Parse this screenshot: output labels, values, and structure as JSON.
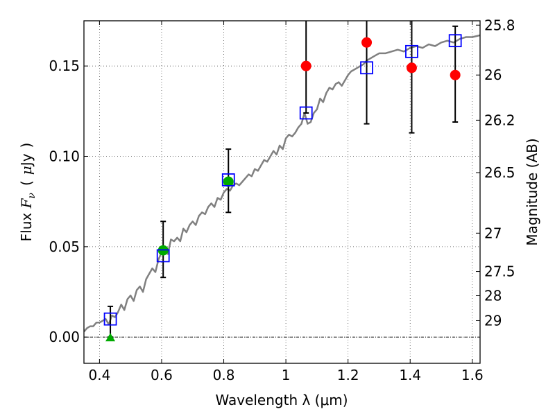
{
  "chart_data": {
    "type": "scatter",
    "xlabel": "Wavelength  λ (μm)",
    "ylabel_left": "Flux  F_ν  ( μJy )",
    "ylabel_left_parts": {
      "prefix": "Flux  ",
      "symbol": "F",
      "subscript": "ν",
      "paren_open": "(",
      "unit_mu": "μ",
      "unit_rest": "Jy",
      "paren_close": ")"
    },
    "ylabel_right": "Magnitude (AB)",
    "xlim": [
      0.35,
      1.625
    ],
    "ylim": [
      -0.0145,
      0.175
    ],
    "x_ticks": [
      0.4,
      0.6,
      0.8,
      1.0,
      1.2,
      1.4,
      1.6
    ],
    "x_tick_labels": [
      "0.4",
      "0.6",
      "0.8",
      "1",
      "1.2",
      "1.4",
      "1.6"
    ],
    "y_ticks": [
      0.0,
      0.05,
      0.1,
      0.15
    ],
    "y_tick_labels": [
      "0.00",
      "0.05",
      "0.10",
      "0.15"
    ],
    "right_ticks": [
      {
        "label": "25.8",
        "flux": 0.1726
      },
      {
        "label": "26",
        "flux": 0.145
      },
      {
        "label": "26.2",
        "flux": 0.12
      },
      {
        "label": "26.5",
        "flux": 0.091
      },
      {
        "label": "27",
        "flux": 0.0575
      },
      {
        "label": "27.5",
        "flux": 0.0363
      },
      {
        "label": "28",
        "flux": 0.0229
      },
      {
        "label": "29",
        "flux": 0.0091
      }
    ],
    "grid": true,
    "zero_line": true,
    "colors": {
      "template": "#808080",
      "model": "#0000ff",
      "detection_red": "#ff0000",
      "detection_green": "#00aa00",
      "errorbar": "#000000",
      "grid": "#555555"
    },
    "series": [
      {
        "name": "template SED",
        "style": "line",
        "x": [
          0.35,
          0.36,
          0.37,
          0.38,
          0.39,
          0.4,
          0.41,
          0.42,
          0.43,
          0.44,
          0.45,
          0.46,
          0.47,
          0.48,
          0.49,
          0.5,
          0.51,
          0.52,
          0.53,
          0.54,
          0.55,
          0.56,
          0.57,
          0.58,
          0.59,
          0.6,
          0.61,
          0.62,
          0.63,
          0.64,
          0.65,
          0.66,
          0.67,
          0.68,
          0.69,
          0.7,
          0.71,
          0.72,
          0.73,
          0.74,
          0.75,
          0.76,
          0.77,
          0.78,
          0.79,
          0.8,
          0.81,
          0.82,
          0.83,
          0.84,
          0.85,
          0.86,
          0.87,
          0.88,
          0.89,
          0.9,
          0.91,
          0.92,
          0.93,
          0.94,
          0.95,
          0.96,
          0.97,
          0.98,
          0.99,
          1.0,
          1.01,
          1.02,
          1.03,
          1.04,
          1.05,
          1.06,
          1.07,
          1.08,
          1.09,
          1.1,
          1.11,
          1.12,
          1.13,
          1.14,
          1.15,
          1.16,
          1.17,
          1.18,
          1.19,
          1.2,
          1.21,
          1.22,
          1.23,
          1.24,
          1.25,
          1.26,
          1.28,
          1.3,
          1.32,
          1.34,
          1.36,
          1.38,
          1.4,
          1.42,
          1.44,
          1.46,
          1.48,
          1.5,
          1.52,
          1.54,
          1.56,
          1.58,
          1.6,
          1.625
        ],
        "y": [
          0.003,
          0.005,
          0.006,
          0.006,
          0.008,
          0.008,
          0.009,
          0.01,
          0.007,
          0.012,
          0.011,
          0.014,
          0.018,
          0.015,
          0.021,
          0.023,
          0.02,
          0.026,
          0.028,
          0.025,
          0.032,
          0.035,
          0.038,
          0.036,
          0.043,
          0.047,
          0.05,
          0.046,
          0.054,
          0.053,
          0.055,
          0.053,
          0.06,
          0.058,
          0.062,
          0.064,
          0.062,
          0.067,
          0.069,
          0.068,
          0.072,
          0.074,
          0.072,
          0.077,
          0.076,
          0.08,
          0.082,
          0.081,
          0.084,
          0.085,
          0.084,
          0.086,
          0.088,
          0.09,
          0.089,
          0.093,
          0.092,
          0.095,
          0.098,
          0.097,
          0.1,
          0.103,
          0.101,
          0.106,
          0.104,
          0.11,
          0.112,
          0.111,
          0.113,
          0.116,
          0.118,
          0.124,
          0.118,
          0.119,
          0.124,
          0.126,
          0.132,
          0.13,
          0.135,
          0.138,
          0.137,
          0.14,
          0.141,
          0.139,
          0.142,
          0.145,
          0.147,
          0.148,
          0.149,
          0.15,
          0.151,
          0.153,
          0.155,
          0.157,
          0.157,
          0.158,
          0.159,
          0.158,
          0.16,
          0.161,
          0.16,
          0.162,
          0.161,
          0.163,
          0.164,
          0.163,
          0.165,
          0.166,
          0.166,
          0.167
        ]
      },
      {
        "name": "model photometry",
        "style": "open-square",
        "x": [
          0.435,
          0.605,
          0.815,
          1.065,
          1.26,
          1.405,
          1.545
        ],
        "y": [
          0.01,
          0.045,
          0.087,
          0.124,
          0.149,
          0.158,
          0.164
        ]
      },
      {
        "name": "red detections",
        "style": "filled-circle",
        "x": [
          1.065,
          1.26,
          1.405,
          1.545
        ],
        "y": [
          0.15,
          0.163,
          0.149,
          0.145
        ],
        "y_err_low": [
          0.124,
          0.118,
          0.113,
          0.119
        ],
        "y_err_high": [
          0.2,
          0.2,
          0.2,
          0.172
        ]
      },
      {
        "name": "green detections",
        "style": "filled-circle",
        "x": [
          0.605,
          0.815
        ],
        "y": [
          0.048,
          0.086
        ],
        "y_err_low": [
          0.033,
          0.069
        ],
        "y_err_high": [
          0.064,
          0.104
        ]
      },
      {
        "name": "upper limit",
        "style": "triangle",
        "x": [
          0.435
        ],
        "y": [
          0.0
        ],
        "y_err_low": [
          0.0
        ],
        "y_err_high": [
          0.017
        ]
      }
    ]
  }
}
